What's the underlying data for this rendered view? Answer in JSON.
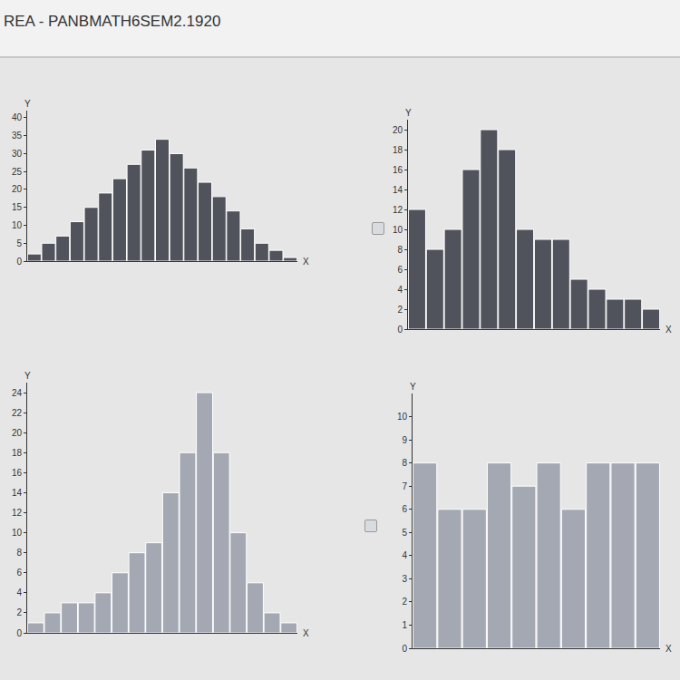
{
  "header": "REA - PANBMATH6SEM2.1920",
  "chart_data": [
    {
      "type": "bar",
      "x_label": "X",
      "y_label": "Y",
      "categories": [
        null,
        null,
        null,
        null,
        null,
        null,
        null,
        null,
        null,
        null,
        null,
        null,
        null,
        null,
        null,
        null,
        null,
        null,
        null
      ],
      "values": [
        2,
        5,
        7,
        11,
        15,
        19,
        23,
        27,
        31,
        34,
        30,
        26,
        22,
        18,
        14,
        9,
        5,
        3,
        1
      ],
      "color": "#50535c",
      "ylim": [
        0,
        42
      ],
      "yticks": [
        0,
        5,
        10,
        15,
        20,
        25,
        30,
        35,
        40
      ],
      "tick_labels": "y"
    },
    {
      "type": "bar",
      "x_label": "X",
      "y_label": "Y",
      "categories": [
        null,
        null,
        null,
        null,
        null,
        null,
        null,
        null,
        null,
        null,
        null,
        null,
        null,
        null
      ],
      "values": [
        12,
        8,
        10,
        16,
        20,
        18,
        10,
        9,
        9,
        5,
        4,
        3,
        3,
        2
      ],
      "color": "#50535c",
      "ylim": [
        0,
        21
      ],
      "yticks": [
        0,
        2,
        4,
        6,
        8,
        10,
        12,
        14,
        16,
        18,
        20
      ],
      "tick_labels": "y"
    },
    {
      "type": "bar",
      "x_label": "X",
      "y_label": "Y",
      "categories": [
        null,
        null,
        null,
        null,
        null,
        null,
        null,
        null,
        null,
        null,
        null,
        null,
        null,
        null,
        null,
        null
      ],
      "values": [
        1,
        2,
        3,
        3,
        4,
        6,
        8,
        9,
        14,
        18,
        24,
        18,
        10,
        5,
        2,
        1
      ],
      "color": "#a3a8b3",
      "ylim": [
        0,
        25
      ],
      "yticks": [
        0,
        2,
        4,
        6,
        8,
        10,
        12,
        14,
        16,
        18,
        20,
        22,
        24
      ],
      "tick_labels": "y"
    },
    {
      "type": "bar",
      "x_label": "X",
      "y_label": "Y",
      "categories": [
        null,
        null,
        null,
        null,
        null,
        null,
        null,
        null,
        null,
        null
      ],
      "values": [
        8,
        6,
        6,
        8,
        7,
        8,
        6,
        8,
        8,
        8
      ],
      "color": "#a3a8b3",
      "ylim": [
        0,
        11
      ],
      "yticks": [
        0,
        1,
        2,
        3,
        4,
        5,
        6,
        7,
        8,
        9,
        10
      ],
      "tick_labels": "y"
    }
  ]
}
